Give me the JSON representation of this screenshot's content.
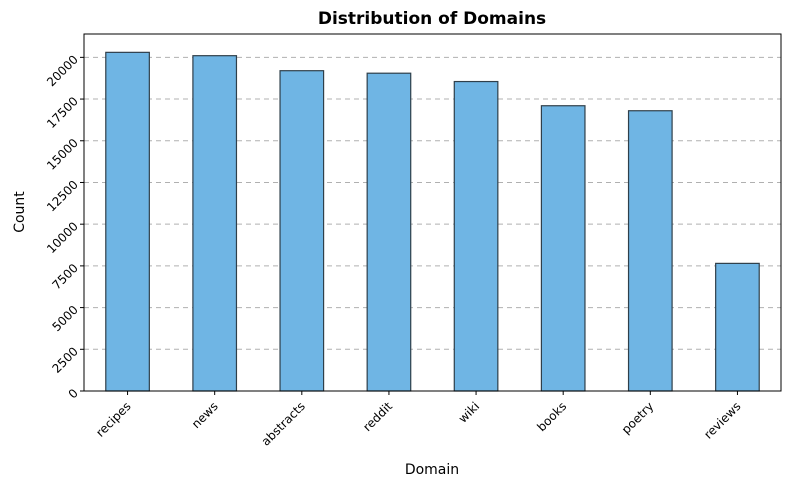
{
  "chart_data": {
    "type": "bar",
    "title": "Distribution of Domains",
    "xlabel": "Domain",
    "ylabel": "Count",
    "categories": [
      "recipes",
      "news",
      "abstracts",
      "reddit",
      "wiki",
      "books",
      "poetry",
      "reviews"
    ],
    "values": [
      20300,
      20100,
      19200,
      19050,
      18550,
      17100,
      16800,
      7650
    ],
    "ylim": [
      0,
      21400
    ],
    "yticks": [
      0,
      2500,
      5000,
      7500,
      10000,
      12500,
      15000,
      17500,
      20000
    ],
    "grid": "y-dashed",
    "bar_color": "#6fb5e4",
    "bar_edge_color": "#2f3f4a"
  }
}
